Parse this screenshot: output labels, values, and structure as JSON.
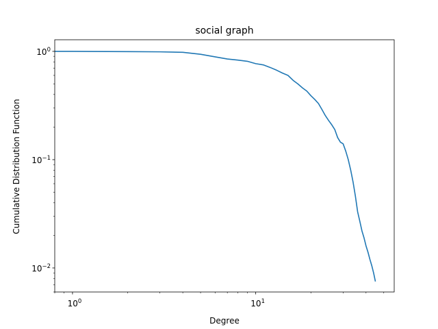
{
  "chart_data": {
    "type": "line",
    "title": "social graph",
    "xlabel": "Degree",
    "ylabel": "Cumulative Distribution Function",
    "xscale": "log",
    "yscale": "log",
    "xlim": [
      0.8,
      57
    ],
    "ylim": [
      0.006,
      1.28
    ],
    "grid": false,
    "x_major_ticks": [
      {
        "value": 1,
        "base": "10",
        "exp": "0"
      },
      {
        "value": 10,
        "base": "10",
        "exp": "1"
      }
    ],
    "y_major_ticks": [
      {
        "value": 0.01,
        "base": "10",
        "exp": "−2"
      },
      {
        "value": 0.1,
        "base": "10",
        "exp": "−1"
      },
      {
        "value": 1,
        "base": "10",
        "exp": "0"
      }
    ],
    "series": [
      {
        "color": "#1f77b4",
        "x": [
          0.8,
          1,
          2,
          3,
          4,
          5,
          6,
          7,
          8,
          9,
          10,
          11,
          12,
          13,
          14,
          15,
          16,
          17,
          18,
          19,
          20,
          21,
          22,
          23,
          24,
          25,
          26,
          27,
          28,
          29,
          30,
          31,
          32,
          33,
          34,
          35,
          36,
          37,
          38,
          39,
          40,
          41,
          42,
          43,
          44,
          45
        ],
        "y": [
          1.0,
          1.0,
          0.995,
          0.99,
          0.98,
          0.94,
          0.89,
          0.85,
          0.83,
          0.81,
          0.77,
          0.75,
          0.71,
          0.67,
          0.63,
          0.6,
          0.54,
          0.5,
          0.46,
          0.43,
          0.39,
          0.36,
          0.33,
          0.29,
          0.255,
          0.23,
          0.21,
          0.19,
          0.16,
          0.145,
          0.14,
          0.12,
          0.1,
          0.08,
          0.062,
          0.046,
          0.033,
          0.027,
          0.022,
          0.019,
          0.016,
          0.014,
          0.012,
          0.0105,
          0.009,
          0.0075
        ]
      }
    ]
  }
}
